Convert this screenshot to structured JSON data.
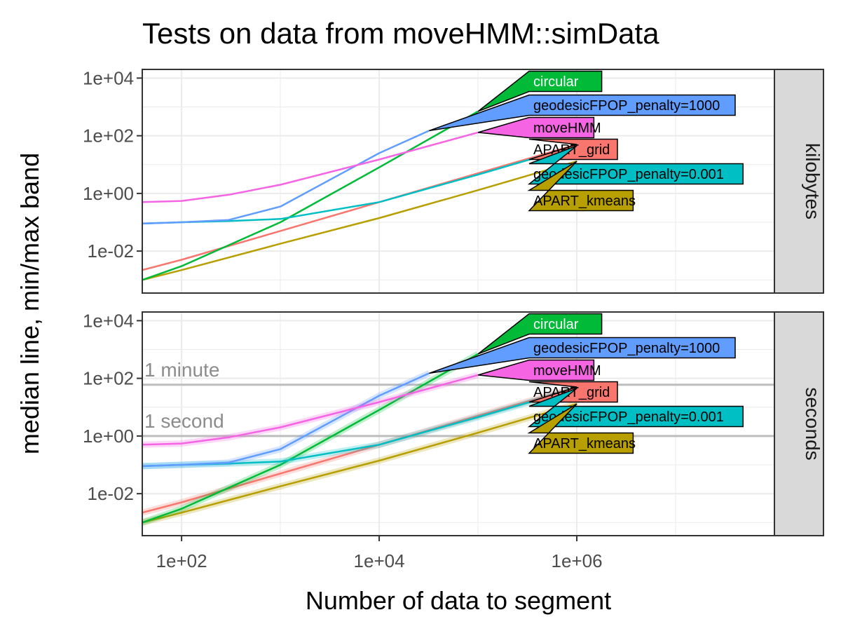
{
  "chart_data": {
    "type": "line",
    "title": "Tests on data from moveHMM::simData",
    "xlabel": "Number of data to segment",
    "ylabel": "median line, min/max band",
    "x_scale": "log10",
    "y_scale": "log10",
    "xlim": [
      40,
      100000000
    ],
    "x_ticks": [
      100,
      10000,
      1000000
    ],
    "x_tick_labels": [
      "1e+02",
      "1e+04",
      "1e+06"
    ],
    "y_ticks": [
      0.01,
      1,
      100,
      10000
    ],
    "y_tick_labels": [
      "1e-02",
      "1e+00",
      "1e+02",
      "1e+04"
    ],
    "ylim": [
      0.00035,
      20000
    ],
    "grid": true,
    "colors": {
      "APART_grid": "#F8766D",
      "APART_kmeans": "#B79F00",
      "circular": "#00BA38",
      "geodesicFPOP_penalty=0.001": "#00BFC4",
      "geodesicFPOP_penalty=1000": "#619CFF",
      "moveHMM": "#F564E3"
    },
    "label_order": [
      "circular",
      "geodesicFPOP_penalty=1000",
      "moveHMM",
      "APART_grid",
      "geodesicFPOP_penalty=0.001",
      "APART_kmeans"
    ],
    "label_text_colors": {
      "circular": "#ffffff",
      "geodesicFPOP_penalty=1000": "#000000",
      "moveHMM": "#000000",
      "APART_grid": "#000000",
      "geodesicFPOP_penalty=0.001": "#000000",
      "APART_kmeans": "#000000"
    },
    "panels": [
      {
        "strip": "kilobytes",
        "reference_lines": [],
        "series": [
          {
            "name": "APART_grid",
            "x": [
              40,
              100,
              1000,
              10000,
              100000,
              1000000
            ],
            "y": [
              0.0022,
              0.005,
              0.05,
              0.5,
              5,
              50
            ]
          },
          {
            "name": "APART_kmeans",
            "x": [
              40,
              100,
              1000,
              10000,
              100000,
              1000000
            ],
            "y": [
              0.001,
              0.0022,
              0.018,
              0.14,
              1.3,
              13
            ]
          },
          {
            "name": "circular",
            "x": [
              40,
              100,
              1000,
              10000,
              100000
            ],
            "y": [
              0.001,
              0.003,
              0.1,
              8,
              700
            ]
          },
          {
            "name": "geodesicFPOP_penalty=0.001",
            "x": [
              40,
              100,
              300,
              1000,
              10000,
              100000,
              1000000
            ],
            "y": [
              0.09,
              0.1,
              0.11,
              0.13,
              0.5,
              4.5,
              45
            ]
          },
          {
            "name": "geodesicFPOP_penalty=1000",
            "x": [
              40,
              100,
              300,
              1000,
              10000,
              32000
            ],
            "y": [
              0.09,
              0.1,
              0.12,
              0.35,
              25,
              150
            ]
          },
          {
            "name": "moveHMM",
            "x": [
              40,
              100,
              300,
              1000,
              10000,
              100000
            ],
            "y": [
              0.5,
              0.55,
              0.9,
              2,
              15,
              130
            ]
          }
        ]
      },
      {
        "strip": "seconds",
        "reference_lines": [
          {
            "label": "1 minute",
            "y": 60
          },
          {
            "label": "1 second",
            "y": 1
          }
        ],
        "series": [
          {
            "name": "APART_grid",
            "x": [
              40,
              100,
              1000,
              10000,
              100000,
              1000000
            ],
            "y": [
              0.0022,
              0.005,
              0.05,
              0.5,
              5,
              50
            ]
          },
          {
            "name": "APART_kmeans",
            "x": [
              40,
              100,
              1000,
              10000,
              100000,
              1000000
            ],
            "y": [
              0.001,
              0.0022,
              0.018,
              0.14,
              1.3,
              13
            ]
          },
          {
            "name": "circular",
            "x": [
              40,
              100,
              1000,
              10000,
              100000
            ],
            "y": [
              0.001,
              0.003,
              0.1,
              8,
              700
            ]
          },
          {
            "name": "geodesicFPOP_penalty=0.001",
            "x": [
              40,
              100,
              300,
              1000,
              10000,
              100000,
              1000000
            ],
            "y": [
              0.09,
              0.1,
              0.11,
              0.13,
              0.5,
              4.5,
              45
            ]
          },
          {
            "name": "geodesicFPOP_penalty=1000",
            "x": [
              40,
              100,
              300,
              1000,
              10000,
              32000
            ],
            "y": [
              0.09,
              0.1,
              0.12,
              0.35,
              25,
              150
            ]
          },
          {
            "name": "moveHMM",
            "x": [
              40,
              100,
              300,
              1000,
              10000,
              100000
            ],
            "y": [
              0.5,
              0.55,
              0.9,
              2,
              15,
              130
            ]
          }
        ]
      }
    ]
  }
}
